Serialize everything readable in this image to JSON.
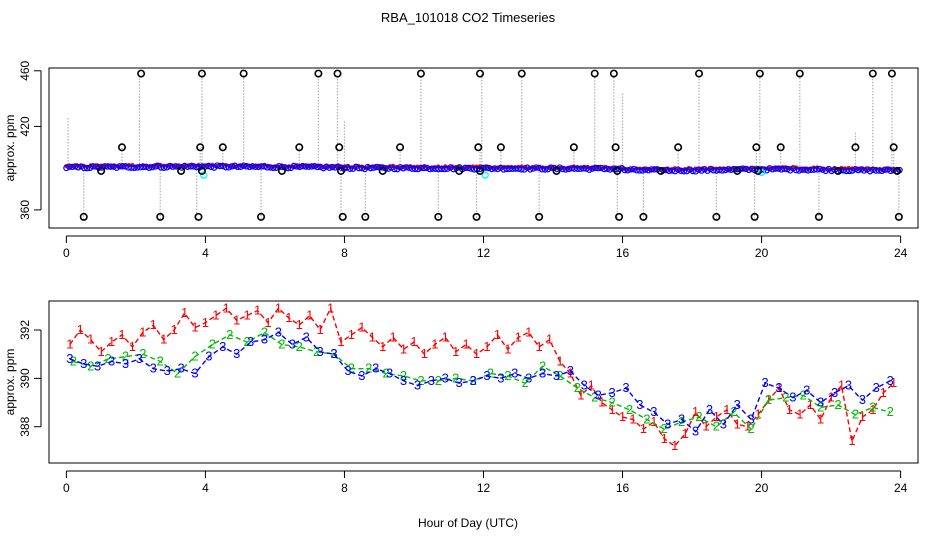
{
  "chart_data": [
    {
      "type": "scatter",
      "title": "RBA_101018  CO2 Timeseries",
      "xlabel": "",
      "ylabel": "approx. ppm",
      "xlim": [
        -0.5,
        24.5
      ],
      "ylim": [
        347,
        462
      ],
      "xticks": [
        0,
        4,
        8,
        12,
        16,
        20,
        24
      ],
      "yticks": [
        360,
        420,
        460
      ],
      "grid": false,
      "background_trace": {
        "name": "1-second raw CO2 (grey dotted)",
        "color": "#b0b0b0",
        "spikes": [
          {
            "x": 0.05,
            "y": 427
          },
          {
            "x": 0.5,
            "y": 353
          },
          {
            "x": 1.6,
            "y": 405
          },
          {
            "x": 2.1,
            "y": 457
          },
          {
            "x": 2.7,
            "y": 353
          },
          {
            "x": 3.75,
            "y": 353
          },
          {
            "x": 3.85,
            "y": 405
          },
          {
            "x": 3.9,
            "y": 459
          },
          {
            "x": 4.5,
            "y": 405
          },
          {
            "x": 5.1,
            "y": 457
          },
          {
            "x": 5.6,
            "y": 353
          },
          {
            "x": 6.7,
            "y": 405
          },
          {
            "x": 7.25,
            "y": 457
          },
          {
            "x": 7.8,
            "y": 457
          },
          {
            "x": 7.9,
            "y": 353
          },
          {
            "x": 8.0,
            "y": 424
          },
          {
            "x": 8.6,
            "y": 353
          },
          {
            "x": 9.6,
            "y": 405
          },
          {
            "x": 10.2,
            "y": 457
          },
          {
            "x": 10.7,
            "y": 353
          },
          {
            "x": 11.8,
            "y": 353
          },
          {
            "x": 11.9,
            "y": 405
          },
          {
            "x": 11.95,
            "y": 459
          },
          {
            "x": 12.5,
            "y": 405
          },
          {
            "x": 13.1,
            "y": 457
          },
          {
            "x": 13.6,
            "y": 353
          },
          {
            "x": 14.6,
            "y": 405
          },
          {
            "x": 15.2,
            "y": 457
          },
          {
            "x": 15.75,
            "y": 457
          },
          {
            "x": 15.85,
            "y": 353
          },
          {
            "x": 16.0,
            "y": 444
          },
          {
            "x": 16.6,
            "y": 353
          },
          {
            "x": 17.6,
            "y": 405
          },
          {
            "x": 18.2,
            "y": 457
          },
          {
            "x": 18.7,
            "y": 353
          },
          {
            "x": 19.8,
            "y": 353
          },
          {
            "x": 19.85,
            "y": 405
          },
          {
            "x": 19.95,
            "y": 459
          },
          {
            "x": 20.55,
            "y": 407
          },
          {
            "x": 21.1,
            "y": 457
          },
          {
            "x": 21.65,
            "y": 353
          },
          {
            "x": 22.7,
            "y": 416
          },
          {
            "x": 23.2,
            "y": 457
          },
          {
            "x": 23.75,
            "y": 457
          },
          {
            "x": 23.8,
            "y": 405
          },
          {
            "x": 23.95,
            "y": 353
          }
        ]
      },
      "series": [
        {
          "name": "red",
          "color": "#ff0000",
          "marker": "point",
          "x_range": [
            0.0,
            24.0
          ],
          "y_baseline_ppm": "near 389–392"
        },
        {
          "name": "blue",
          "color": "#0000ff",
          "marker": "circle",
          "x_range": [
            0.0,
            24.0
          ],
          "y_baseline_ppm": "near 388–392"
        },
        {
          "name": "cyan",
          "color": "#00ffff",
          "marker": "circle",
          "points": [
            {
              "x": 3.95,
              "y": 385
            },
            {
              "x": 12.05,
              "y": 385
            },
            {
              "x": 20.0,
              "y": 387
            }
          ]
        },
        {
          "name": "black",
          "color": "#000000",
          "marker": "open-circle",
          "points": [
            {
              "x": 0.5,
              "y": 355
            },
            {
              "x": 1.0,
              "y": 388
            },
            {
              "x": 1.6,
              "y": 405
            },
            {
              "x": 2.15,
              "y": 458
            },
            {
              "x": 2.7,
              "y": 355
            },
            {
              "x": 3.3,
              "y": 388
            },
            {
              "x": 3.8,
              "y": 355
            },
            {
              "x": 3.85,
              "y": 405
            },
            {
              "x": 3.9,
              "y": 458
            },
            {
              "x": 3.9,
              "y": 388
            },
            {
              "x": 4.5,
              "y": 405
            },
            {
              "x": 5.1,
              "y": 458
            },
            {
              "x": 5.6,
              "y": 355
            },
            {
              "x": 6.2,
              "y": 388
            },
            {
              "x": 6.7,
              "y": 405
            },
            {
              "x": 7.25,
              "y": 458
            },
            {
              "x": 7.8,
              "y": 458
            },
            {
              "x": 7.85,
              "y": 405
            },
            {
              "x": 7.9,
              "y": 388
            },
            {
              "x": 7.95,
              "y": 355
            },
            {
              "x": 8.6,
              "y": 355
            },
            {
              "x": 9.1,
              "y": 388
            },
            {
              "x": 9.6,
              "y": 405
            },
            {
              "x": 10.2,
              "y": 458
            },
            {
              "x": 10.7,
              "y": 355
            },
            {
              "x": 11.3,
              "y": 388
            },
            {
              "x": 11.8,
              "y": 355
            },
            {
              "x": 11.85,
              "y": 405
            },
            {
              "x": 11.9,
              "y": 458
            },
            {
              "x": 11.9,
              "y": 388
            },
            {
              "x": 12.5,
              "y": 405
            },
            {
              "x": 13.1,
              "y": 458
            },
            {
              "x": 13.6,
              "y": 355
            },
            {
              "x": 14.1,
              "y": 388
            },
            {
              "x": 14.6,
              "y": 405
            },
            {
              "x": 15.2,
              "y": 458
            },
            {
              "x": 15.75,
              "y": 458
            },
            {
              "x": 15.8,
              "y": 405
            },
            {
              "x": 15.85,
              "y": 388
            },
            {
              "x": 15.9,
              "y": 355
            },
            {
              "x": 16.6,
              "y": 355
            },
            {
              "x": 17.1,
              "y": 388
            },
            {
              "x": 17.6,
              "y": 405
            },
            {
              "x": 18.2,
              "y": 458
            },
            {
              "x": 18.7,
              "y": 355
            },
            {
              "x": 19.3,
              "y": 388
            },
            {
              "x": 19.8,
              "y": 355
            },
            {
              "x": 19.85,
              "y": 405
            },
            {
              "x": 19.95,
              "y": 458
            },
            {
              "x": 19.9,
              "y": 388
            },
            {
              "x": 20.55,
              "y": 405
            },
            {
              "x": 21.1,
              "y": 458
            },
            {
              "x": 21.65,
              "y": 355
            },
            {
              "x": 22.2,
              "y": 388
            },
            {
              "x": 22.7,
              "y": 405
            },
            {
              "x": 23.2,
              "y": 458
            },
            {
              "x": 23.75,
              "y": 458
            },
            {
              "x": 23.8,
              "y": 405
            },
            {
              "x": 23.9,
              "y": 388
            },
            {
              "x": 23.95,
              "y": 355
            }
          ]
        }
      ]
    },
    {
      "type": "line",
      "title": "",
      "xlabel": "Hour of Day (UTC)",
      "ylabel": "approx. ppm",
      "xlim": [
        -0.5,
        24.5
      ],
      "ylim": [
        386.5,
        393.2
      ],
      "xticks": [
        0,
        4,
        8,
        12,
        16,
        20,
        24
      ],
      "yticks": [
        388,
        390,
        392
      ],
      "grid": false,
      "marker_style": "digits as plotting characters",
      "series": [
        {
          "name": "1",
          "color": "#ff0000",
          "linestyle": "dashed",
          "x": [
            0.1,
            0.4,
            0.7,
            1.0,
            1.3,
            1.6,
            1.9,
            2.2,
            2.5,
            2.8,
            3.1,
            3.4,
            3.7,
            4.0,
            4.3,
            4.6,
            4.9,
            5.2,
            5.5,
            5.8,
            6.1,
            6.4,
            6.7,
            7.0,
            7.3,
            7.6,
            7.9,
            8.2,
            8.5,
            8.8,
            9.1,
            9.4,
            9.7,
            10.0,
            10.3,
            10.6,
            10.9,
            11.2,
            11.5,
            11.8,
            12.1,
            12.4,
            12.7,
            13.0,
            13.3,
            13.6,
            13.9,
            14.2,
            14.5,
            14.8,
            15.1,
            15.4,
            15.7,
            16.0,
            16.3,
            16.6,
            16.9,
            17.2,
            17.5,
            17.8,
            18.1,
            18.4,
            18.7,
            19.0,
            19.3,
            19.6,
            19.9,
            20.2,
            20.5,
            20.8,
            21.1,
            21.4,
            21.7,
            22.0,
            22.3,
            22.6,
            22.9,
            23.2,
            23.5,
            23.8
          ],
          "y": [
            391.4,
            392.0,
            391.6,
            391.1,
            391.5,
            391.8,
            391.3,
            391.9,
            392.2,
            391.6,
            392.0,
            392.7,
            392.1,
            392.3,
            392.6,
            392.9,
            392.4,
            392.6,
            392.8,
            392.3,
            392.9,
            392.5,
            392.2,
            392.6,
            392.0,
            392.9,
            391.5,
            391.8,
            392.1,
            391.7,
            391.3,
            391.7,
            391.2,
            391.5,
            391.0,
            391.4,
            391.7,
            391.1,
            391.4,
            391.0,
            391.3,
            391.8,
            391.2,
            391.7,
            391.9,
            391.3,
            391.6,
            390.7,
            390.2,
            389.3,
            389.7,
            389.0,
            388.7,
            388.4,
            388.3,
            387.9,
            388.2,
            387.5,
            387.2,
            387.7,
            388.6,
            388.0,
            388.4,
            388.7,
            388.1,
            388.0,
            388.5,
            389.1,
            389.6,
            388.7,
            388.5,
            388.9,
            388.3,
            389.2,
            389.7,
            387.4,
            388.4,
            388.7,
            389.4,
            389.8
          ]
        },
        {
          "name": "2",
          "color": "#00bb00",
          "linestyle": "dashed",
          "x": [
            0.2,
            0.7,
            1.2,
            1.7,
            2.2,
            2.7,
            3.2,
            3.7,
            4.2,
            4.7,
            5.2,
            5.7,
            6.2,
            6.7,
            7.2,
            7.7,
            8.2,
            8.7,
            9.2,
            9.7,
            10.2,
            10.7,
            11.2,
            11.7,
            12.2,
            12.7,
            13.2,
            13.7,
            14.2,
            14.7,
            15.2,
            15.7,
            16.2,
            16.7,
            17.2,
            17.7,
            18.2,
            18.7,
            19.2,
            19.7,
            20.2,
            20.7,
            21.2,
            21.7,
            22.2,
            22.7,
            23.2,
            23.7
          ],
          "y": [
            390.7,
            390.5,
            390.8,
            390.9,
            391.0,
            390.7,
            390.2,
            390.9,
            391.4,
            391.8,
            391.5,
            391.9,
            391.4,
            391.3,
            391.1,
            391.0,
            390.4,
            390.4,
            390.2,
            390.1,
            389.9,
            389.9,
            390.0,
            389.9,
            390.2,
            390.1,
            389.8,
            390.5,
            390.1,
            389.6,
            389.2,
            389.0,
            388.7,
            388.3,
            387.9,
            388.2,
            388.4,
            388.0,
            388.6,
            387.9,
            389.1,
            389.2,
            389.3,
            388.8,
            388.9,
            388.5,
            388.8,
            388.6
          ]
        },
        {
          "name": "3",
          "color": "#0000ff",
          "linestyle": "dashed",
          "x": [
            0.1,
            0.5,
            0.9,
            1.3,
            1.7,
            2.1,
            2.5,
            2.9,
            3.3,
            3.7,
            4.1,
            4.5,
            4.9,
            5.3,
            5.7,
            6.1,
            6.5,
            6.9,
            7.3,
            7.7,
            8.1,
            8.5,
            8.9,
            9.3,
            9.7,
            10.1,
            10.5,
            10.9,
            11.3,
            11.7,
            12.1,
            12.5,
            12.9,
            13.3,
            13.7,
            14.1,
            14.5,
            14.9,
            15.3,
            15.7,
            16.1,
            16.5,
            16.9,
            17.3,
            17.7,
            18.1,
            18.5,
            18.9,
            19.3,
            19.7,
            20.1,
            20.5,
            20.9,
            21.3,
            21.7,
            22.1,
            22.5,
            22.9,
            23.3,
            23.7
          ],
          "y": [
            390.8,
            390.6,
            390.5,
            390.7,
            390.6,
            390.8,
            390.4,
            390.3,
            390.4,
            390.2,
            390.9,
            391.3,
            391.0,
            391.5,
            391.6,
            391.9,
            391.4,
            391.7,
            391.1,
            391.0,
            390.3,
            390.1,
            390.4,
            390.2,
            389.9,
            389.7,
            389.9,
            390.0,
            389.8,
            389.9,
            390.1,
            390.0,
            390.2,
            390.0,
            390.2,
            390.1,
            390.3,
            389.7,
            389.3,
            389.4,
            389.6,
            388.9,
            388.6,
            388.1,
            388.3,
            387.8,
            388.7,
            388.1,
            388.9,
            388.3,
            389.8,
            389.6,
            389.2,
            389.5,
            389.0,
            389.4,
            389.7,
            389.1,
            389.6,
            389.9
          ]
        }
      ]
    }
  ]
}
